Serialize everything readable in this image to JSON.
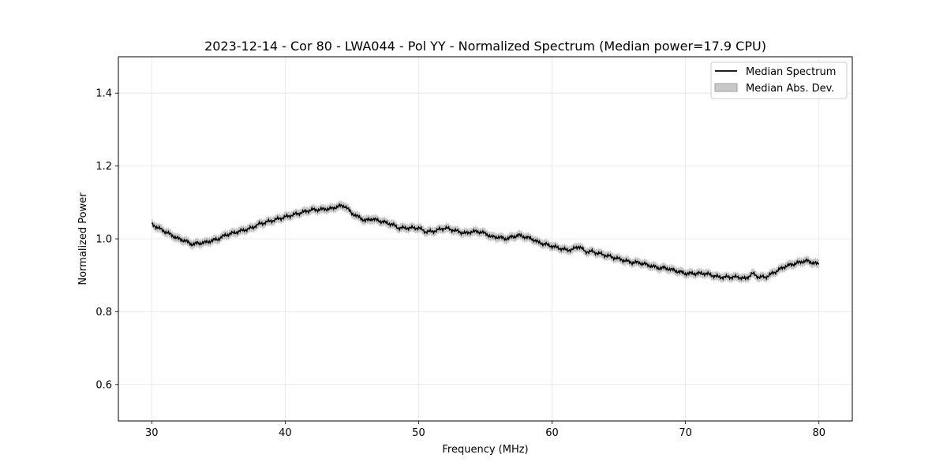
{
  "chart_data": {
    "type": "line",
    "title": "2023-12-14 - Cor 80 - LWA044 - Pol YY - Normalized Spectrum (Median power=17.9 CPU)",
    "xlabel": "Frequency (MHz)",
    "ylabel": "Normalized Power",
    "xlim": [
      27.5,
      82.5
    ],
    "ylim": [
      0.5,
      1.5
    ],
    "xticks": [
      30,
      40,
      50,
      60,
      70,
      80
    ],
    "xtick_labels": [
      "30",
      "40",
      "50",
      "60",
      "70",
      "80"
    ],
    "yticks": [
      0.6,
      0.8,
      1.0,
      1.2,
      1.4
    ],
    "ytick_labels": [
      "0.6",
      "0.8",
      "1.0",
      "1.2",
      "1.4"
    ],
    "grid": true,
    "legend_position": "top-right",
    "colors": {
      "line": "#000000",
      "band": "#a0a0a0",
      "grid": "#e6e6e6"
    },
    "series": [
      {
        "name": "Median Spectrum",
        "x": [
          30,
          30.5,
          31,
          31.5,
          32,
          32.5,
          33,
          33.5,
          34,
          34.5,
          35,
          35.5,
          36,
          36.5,
          37,
          37.5,
          38,
          38.5,
          39,
          39.5,
          40,
          40.5,
          41,
          41.5,
          42,
          42.5,
          43,
          43.5,
          44,
          44.5,
          45,
          45.5,
          46,
          46.5,
          47,
          47.5,
          48,
          48.5,
          49,
          49.5,
          50,
          50.5,
          51,
          51.5,
          52,
          52.5,
          53,
          53.5,
          54,
          54.5,
          55,
          55.5,
          56,
          56.5,
          57,
          57.5,
          58,
          58.5,
          59,
          59.5,
          60,
          60.5,
          61,
          61.5,
          62,
          62.5,
          63,
          63.5,
          64,
          64.5,
          65,
          65.5,
          66,
          66.5,
          67,
          67.5,
          68,
          68.5,
          69,
          69.5,
          70,
          70.5,
          71,
          71.5,
          72,
          72.5,
          73,
          73.5,
          74,
          74.5,
          75,
          75.5,
          76,
          76.5,
          77,
          77.5,
          78,
          78.5,
          79,
          79.5,
          80
        ],
        "values": [
          1.04,
          1.03,
          1.02,
          1.01,
          1.0,
          0.995,
          0.985,
          0.988,
          0.99,
          0.995,
          1.0,
          1.01,
          1.015,
          1.02,
          1.025,
          1.03,
          1.04,
          1.045,
          1.05,
          1.055,
          1.06,
          1.065,
          1.07,
          1.075,
          1.08,
          1.08,
          1.082,
          1.083,
          1.09,
          1.09,
          1.07,
          1.06,
          1.05,
          1.055,
          1.05,
          1.045,
          1.04,
          1.03,
          1.03,
          1.03,
          1.03,
          1.02,
          1.02,
          1.025,
          1.03,
          1.025,
          1.02,
          1.015,
          1.02,
          1.02,
          1.015,
          1.005,
          1.005,
          1.0,
          1.005,
          1.01,
          1.005,
          1.0,
          0.99,
          0.985,
          0.98,
          0.975,
          0.97,
          0.97,
          0.98,
          0.965,
          0.965,
          0.96,
          0.955,
          0.95,
          0.945,
          0.94,
          0.935,
          0.935,
          0.93,
          0.925,
          0.92,
          0.92,
          0.915,
          0.91,
          0.905,
          0.905,
          0.905,
          0.905,
          0.9,
          0.895,
          0.895,
          0.895,
          0.895,
          0.89,
          0.905,
          0.895,
          0.895,
          0.905,
          0.915,
          0.925,
          0.93,
          0.935,
          0.94,
          0.935,
          0.93
        ]
      },
      {
        "name": "Median Abs. Dev.",
        "band_halfwidth": 0.012
      }
    ]
  }
}
